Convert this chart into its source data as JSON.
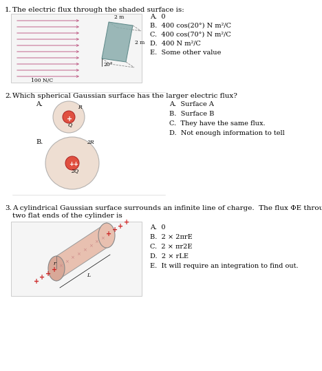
{
  "bg_color": "#ffffff",
  "fig_width": 4.68,
  "fig_height": 5.39,
  "dpi": 100,
  "q1": {
    "number": "1.",
    "text": "The electric flux through the shaded surface is:",
    "options": [
      "A.  0",
      "B.  400 cos(20°) N m²/C",
      "C.  400 cos(70°) N m²/C",
      "D.  400 N m²/C",
      "E.  Some other value"
    ]
  },
  "q2": {
    "number": "2.",
    "text": "Which spherical Gaussian surface has the larger electric flux?",
    "options": [
      "A.  Surface A",
      "B.  Surface B",
      "C.  They have the same flux.",
      "D.  Not enough information to tell"
    ]
  },
  "q3": {
    "number": "3.",
    "text_line1": "A cylindrical Gaussian surface surrounds an infinite line of charge.  The flux ΦE through the",
    "text_line2": "two flat ends of the cylinder is",
    "options": [
      "A.  0",
      "B.  2 × 2πrE",
      "C.  2 × πr2E",
      "D.  2 × rLE",
      "E.  It will require an integration to find out."
    ]
  },
  "arrow_color": "#c0628a",
  "sphere_outer_color": "#e8d0c0",
  "sphere_inner_color": "#e05040",
  "cylinder_body_color": "#e8c0b0",
  "cylinder_face_color": "#d8a898",
  "surface_color": "#8aadad",
  "dashed_color": "#888888",
  "plus_color": "#cc2222"
}
